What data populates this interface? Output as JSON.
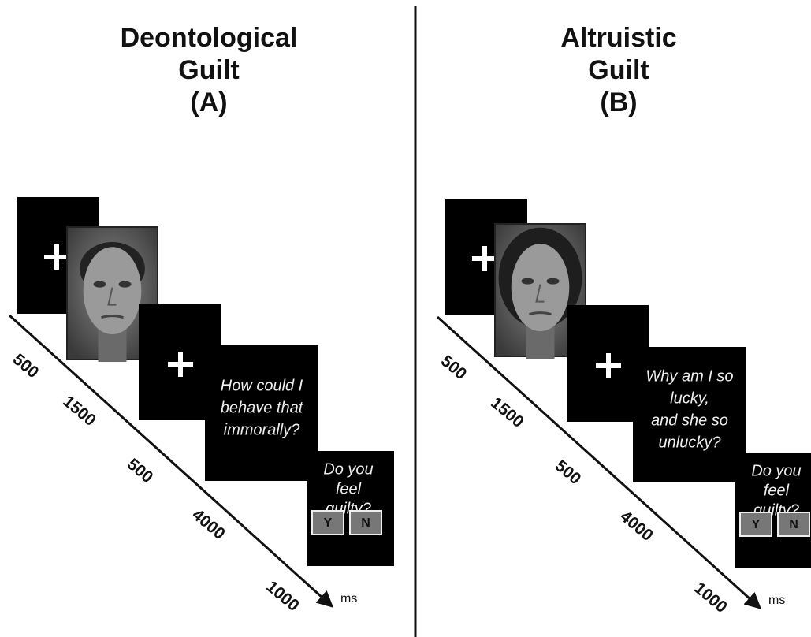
{
  "panels": [
    {
      "title": [
        "Deontological",
        "Guilt",
        "(A)"
      ],
      "question": [
        "How could I",
        "behave that",
        "immorally?"
      ],
      "response": {
        "prompt": [
          "Do you",
          "feel",
          "guilty?"
        ],
        "options": [
          "Y",
          "N"
        ]
      },
      "durations": [
        500,
        1500,
        500,
        4000,
        1000
      ],
      "unit": "ms"
    },
    {
      "title": [
        "Altruistic",
        "Guilt",
        "(B)"
      ],
      "question": [
        "Why am I so",
        "lucky,",
        "and she so",
        "unlucky?"
      ],
      "response": {
        "prompt": [
          "Do you",
          "feel",
          "guilty?"
        ],
        "options": [
          "Y",
          "N"
        ]
      },
      "durations": [
        500,
        1500,
        500,
        4000,
        1000
      ],
      "unit": "ms"
    }
  ]
}
